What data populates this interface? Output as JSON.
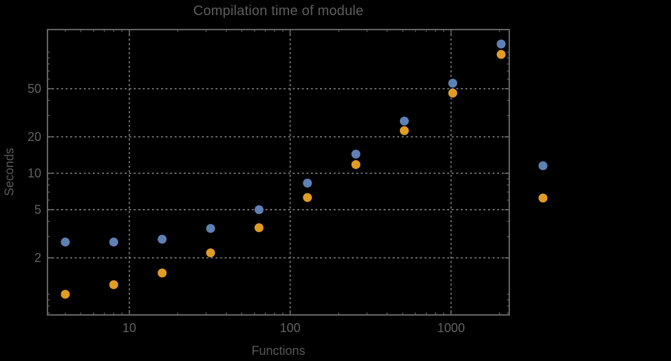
{
  "window": {
    "background": "#000000"
  },
  "chart_data": {
    "type": "scatter",
    "title": "Compilation time of module",
    "xlabel": "Functions",
    "ylabel": "Seconds",
    "xscale": "log",
    "yscale": "log",
    "xlim": [
      3.1,
      2300
    ],
    "ylim": [
      0.675,
      154
    ],
    "grid": {
      "style": "dotted",
      "color": "#7a7a7a",
      "dash": [
        2.8,
        3.8
      ],
      "width": 1.8
    },
    "frame_color": "#666666",
    "tick_label_color": "#626262",
    "x_major_ticks": [
      10,
      100,
      1000
    ],
    "x_major_tick_labels": [
      "10",
      "100",
      "1000"
    ],
    "x_minor_ticks": [
      4,
      5,
      6,
      7,
      8,
      9,
      20,
      30,
      40,
      50,
      60,
      70,
      80,
      90,
      200,
      300,
      400,
      500,
      600,
      700,
      800,
      900,
      2000
    ],
    "y_major_ticks": [
      2,
      5,
      10,
      20,
      50
    ],
    "y_major_tick_labels": [
      "2",
      "5",
      "10",
      "20",
      "50"
    ],
    "y_minor_ticks": [
      0.7,
      0.8,
      0.9,
      1,
      3,
      4,
      6,
      7,
      8,
      9,
      30,
      40,
      60,
      70,
      80,
      90,
      100
    ],
    "x": [
      4,
      8,
      16,
      32,
      64,
      128,
      256,
      512,
      1024,
      2048
    ],
    "series": [
      {
        "name": "series-1-blue",
        "color": "#5E81B5",
        "marker": "disk",
        "values": [
          2.7,
          2.7,
          2.85,
          3.5,
          5.0,
          8.3,
          14.4,
          27,
          55.5,
          117
        ]
      },
      {
        "name": "series-2-orange",
        "color": "#E19C24",
        "marker": "disk",
        "values": [
          1.0,
          1.2,
          1.5,
          2.2,
          3.55,
          6.3,
          11.8,
          22.5,
          46,
          96
        ]
      }
    ],
    "legend": {
      "position": "outside-right",
      "labels_visible": false,
      "markers": [
        {
          "color": "#5E81B5"
        },
        {
          "color": "#E19C24"
        }
      ]
    }
  }
}
